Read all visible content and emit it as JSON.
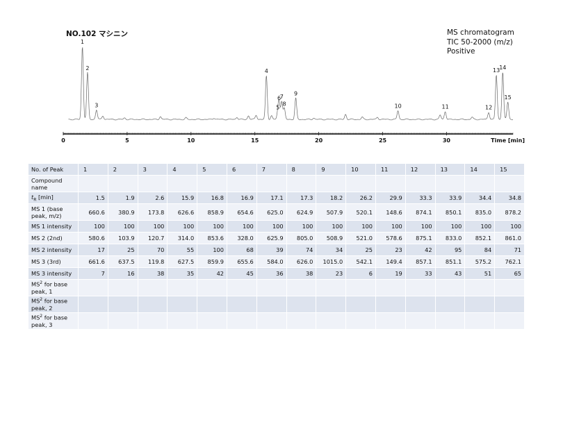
{
  "page": {
    "title": "NO.102 マシニン",
    "info_lines": [
      "MS chromatogram",
      "TIC 50-2000 (m/z)",
      "Positive"
    ]
  },
  "chart_data": {
    "type": "line",
    "title": "MS chromatogram",
    "xlabel": "Time [min]",
    "ylabel": "",
    "xlim": [
      0,
      35.2
    ],
    "x_ticks": [
      0,
      5,
      10,
      15,
      20,
      25,
      30
    ],
    "peaks": [
      {
        "label": "1",
        "rt": 1.5,
        "rel_intensity": 1.0
      },
      {
        "label": "2",
        "rt": 1.9,
        "rel_intensity": 0.64
      },
      {
        "label": "3",
        "rt": 2.6,
        "rel_intensity": 0.13
      },
      {
        "label": "4",
        "rt": 15.9,
        "rel_intensity": 0.6
      },
      {
        "label": "5",
        "rt": 16.8,
        "rel_intensity": 0.1
      },
      {
        "label": "6",
        "rt": 16.9,
        "rel_intensity": 0.23
      },
      {
        "label": "7",
        "rt": 17.1,
        "rel_intensity": 0.25
      },
      {
        "label": "8",
        "rt": 17.3,
        "rel_intensity": 0.15
      },
      {
        "label": "9",
        "rt": 18.2,
        "rel_intensity": 0.29
      },
      {
        "label": "10",
        "rt": 26.2,
        "rel_intensity": 0.12
      },
      {
        "label": "11",
        "rt": 29.9,
        "rel_intensity": 0.11
      },
      {
        "label": "12",
        "rt": 33.3,
        "rel_intensity": 0.1
      },
      {
        "label": "13",
        "rt": 33.9,
        "rel_intensity": 0.61
      },
      {
        "label": "14",
        "rt": 34.4,
        "rel_intensity": 0.65
      },
      {
        "label": "15",
        "rt": 34.8,
        "rel_intensity": 0.24
      }
    ],
    "grid": false,
    "legend": "none"
  },
  "table": {
    "row_labels": {
      "peak_no": "No. of Peak",
      "compound": "Compound name",
      "tr": "t",
      "tr_sub": "R",
      "tr_unit": " [min]",
      "ms1": "MS 1 (base peak, m/z)",
      "ms1_int": "MS 1 intensity",
      "ms2": "MS 2 (2nd)",
      "ms2_int": "MS 2 intensity",
      "ms3": "MS 3 (3rd)",
      "ms3_int": "MS 3 intensity",
      "msn_prefix": "MS",
      "msn_sup": "2",
      "msn1": " for base peak, 1",
      "msn2": " for base peak, 2",
      "msn3": " for base peak, 3"
    },
    "peak_numbers": [
      "1",
      "2",
      "3",
      "4",
      "5",
      "6",
      "7",
      "8",
      "9",
      "10",
      "11",
      "12",
      "13",
      "14",
      "15"
    ],
    "rows": {
      "compound": [
        "",
        "",
        "",
        "",
        "",
        "",
        "",
        "",
        "",
        "",
        "",
        "",
        "",
        "",
        ""
      ],
      "tr": [
        "1.5",
        "1.9",
        "2.6",
        "15.9",
        "16.8",
        "16.9",
        "17.1",
        "17.3",
        "18.2",
        "26.2",
        "29.9",
        "33.3",
        "33.9",
        "34.4",
        "34.8"
      ],
      "ms1": [
        "660.6",
        "380.9",
        "173.8",
        "626.6",
        "858.9",
        "654.6",
        "625.0",
        "624.9",
        "507.9",
        "520.1",
        "148.6",
        "874.1",
        "850.1",
        "835.0",
        "878.2"
      ],
      "ms1_int": [
        "100",
        "100",
        "100",
        "100",
        "100",
        "100",
        "100",
        "100",
        "100",
        "100",
        "100",
        "100",
        "100",
        "100",
        "100"
      ],
      "ms2": [
        "580.6",
        "103.9",
        "120.7",
        "314.0",
        "853.6",
        "328.0",
        "625.9",
        "805.0",
        "508.9",
        "521.0",
        "578.6",
        "875.1",
        "833.0",
        "852.1",
        "861.0"
      ],
      "ms2_int": [
        "17",
        "25",
        "70",
        "55",
        "100",
        "68",
        "39",
        "74",
        "34",
        "25",
        "23",
        "42",
        "95",
        "84",
        "71"
      ],
      "ms3": [
        "661.6",
        "637.5",
        "119.8",
        "627.5",
        "859.9",
        "655.6",
        "584.0",
        "626.0",
        "1015.0",
        "542.1",
        "149.4",
        "857.1",
        "851.1",
        "575.2",
        "762.1"
      ],
      "ms3_int": [
        "7",
        "16",
        "38",
        "35",
        "42",
        "45",
        "36",
        "38",
        "23",
        "6",
        "19",
        "33",
        "43",
        "51",
        "65"
      ],
      "msn1": [
        "",
        "",
        "",
        "",
        "",
        "",
        "",
        "",
        "",
        "",
        "",
        "",
        "",
        "",
        ""
      ],
      "msn2": [
        "",
        "",
        "",
        "",
        "",
        "",
        "",
        "",
        "",
        "",
        "",
        "",
        "",
        "",
        ""
      ],
      "msn3": [
        "",
        "",
        "",
        "",
        "",
        "",
        "",
        "",
        "",
        "",
        "",
        "",
        "",
        "",
        ""
      ]
    }
  }
}
